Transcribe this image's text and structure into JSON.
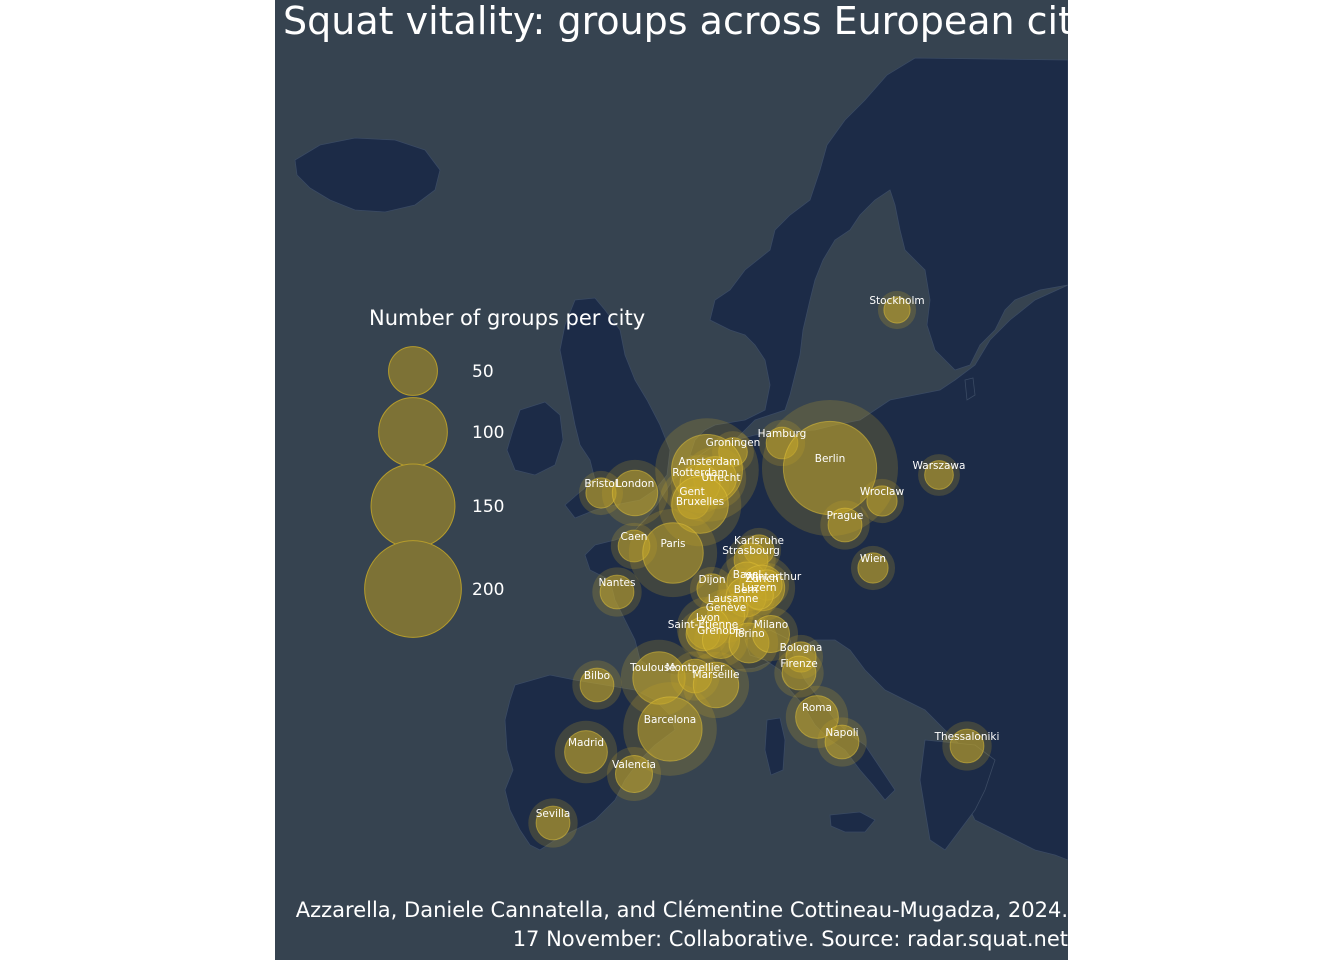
{
  "title": "Squat vitality: groups across European cities",
  "caption_line1": "Azzarella, Daniele Cannatella, and Clémentine Cottineau-Mugadza, 2024.",
  "caption_line2": "17 November: Collaborative. Source: radar.squat.net",
  "colors": {
    "background": "#364350",
    "land": "#1c2b47",
    "borders": "#3a4a63",
    "bubble_fill": "#c2a52a",
    "bubble_stroke": "#e6c53a",
    "text": "#ffffff"
  },
  "legend": {
    "title": "Number of groups per city",
    "items": [
      {
        "value": 50,
        "label": "50"
      },
      {
        "value": 100,
        "label": "100"
      },
      {
        "value": 150,
        "label": "150"
      },
      {
        "value": 200,
        "label": "200"
      }
    ]
  },
  "cities": [
    {
      "name": "Stockholm",
      "groups": 15
    },
    {
      "name": "Groningen",
      "groups": 18
    },
    {
      "name": "Hamburg",
      "groups": 22
    },
    {
      "name": "Amsterdam",
      "groups": 110
    },
    {
      "name": "Utrecht",
      "groups": 40
    },
    {
      "name": "Rotterdam",
      "groups": 35
    },
    {
      "name": "Berlin",
      "groups": 190
    },
    {
      "name": "Warszawa",
      "groups": 18
    },
    {
      "name": "Bristol",
      "groups": 20
    },
    {
      "name": "London",
      "groups": 45
    },
    {
      "name": "Gent",
      "groups": 22
    },
    {
      "name": "Bruxelles",
      "groups": 70
    },
    {
      "name": "Wroclaw",
      "groups": 20
    },
    {
      "name": "Prague",
      "groups": 25
    },
    {
      "name": "Caen",
      "groups": 22
    },
    {
      "name": "Paris",
      "groups": 80
    },
    {
      "name": "Karlsruhe",
      "groups": 20
    },
    {
      "name": "Strasbourg",
      "groups": 25
    },
    {
      "name": "Wien",
      "groups": 20
    },
    {
      "name": "Nantes",
      "groups": 25
    },
    {
      "name": "Dijon",
      "groups": 20
    },
    {
      "name": "Basel",
      "groups": 35
    },
    {
      "name": "Zürich",
      "groups": 45
    },
    {
      "name": "Winterthur",
      "groups": 20
    },
    {
      "name": "Bern",
      "groups": 35
    },
    {
      "name": "Luzern",
      "groups": 18
    },
    {
      "name": "Lausanne",
      "groups": 20
    },
    {
      "name": "Genève",
      "groups": 30
    },
    {
      "name": "Lyon",
      "groups": 40
    },
    {
      "name": "Saint-Étienne",
      "groups": 25
    },
    {
      "name": "Grenoble",
      "groups": 30
    },
    {
      "name": "Torino",
      "groups": 35
    },
    {
      "name": "Milano",
      "groups": 30
    },
    {
      "name": "Bologna",
      "groups": 20
    },
    {
      "name": "Firenze",
      "groups": 25
    },
    {
      "name": "Bilbo",
      "groups": 25
    },
    {
      "name": "Toulouse",
      "groups": 60
    },
    {
      "name": "Montpellier",
      "groups": 25
    },
    {
      "name": "Marseille",
      "groups": 45
    },
    {
      "name": "Roma",
      "groups": 40
    },
    {
      "name": "Barcelona",
      "groups": 90
    },
    {
      "name": "Napoli",
      "groups": 25
    },
    {
      "name": "Thessaloniki",
      "groups": 25
    },
    {
      "name": "Madrid",
      "groups": 40
    },
    {
      "name": "Valencia",
      "groups": 30
    },
    {
      "name": "Sevilla",
      "groups": 25
    }
  ]
}
